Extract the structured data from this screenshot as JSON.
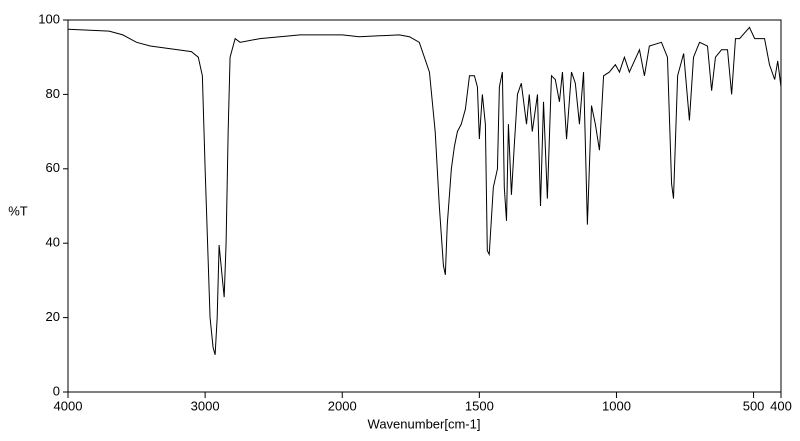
{
  "chart_data": {
    "type": "line",
    "xlabel": "Wavenumber[cm-1]",
    "ylabel": "%T",
    "xlim": [
      4000,
      400
    ],
    "ylim": [
      0,
      100
    ],
    "xticks": [
      4000,
      3000,
      2000,
      1500,
      1000,
      500,
      400
    ],
    "yticks": [
      0,
      20,
      40,
      60,
      80,
      100
    ],
    "xscale": {
      "break": 2000,
      "factor": 2
    },
    "series": [
      {
        "color": "#000000",
        "x": [
          4000,
          3700,
          3600,
          3500,
          3400,
          3300,
          3200,
          3100,
          3050,
          3020,
          3000,
          2964,
          2942,
          2927,
          2912,
          2898,
          2861,
          2847,
          2832,
          2818,
          2781,
          2745,
          2600,
          2307,
          2000,
          1938,
          1792,
          1755,
          1719,
          1682,
          1661,
          1646,
          1631,
          1624,
          1617,
          1602,
          1591,
          1580,
          1566,
          1551,
          1536,
          1518,
          1507,
          1500,
          1489,
          1478,
          1471,
          1464,
          1449,
          1434,
          1427,
          1416,
          1409,
          1401,
          1394,
          1383,
          1372,
          1361,
          1347,
          1328,
          1318,
          1307,
          1288,
          1277,
          1266,
          1252,
          1237,
          1223,
          1208,
          1197,
          1182,
          1164,
          1150,
          1135,
          1120,
          1106,
          1091,
          1077,
          1062,
          1047,
          1026,
          1004,
          989,
          971,
          953,
          916,
          898,
          880,
          836,
          814,
          799,
          792,
          777,
          755,
          734,
          719,
          697,
          668,
          653,
          639,
          617,
          595,
          580,
          566,
          551,
          515,
          496,
          460,
          442,
          423,
          412,
          400
        ],
        "values": [
          97.5,
          97,
          96,
          94,
          93,
          92.5,
          92,
          91.5,
          90,
          85,
          60,
          20,
          12,
          10,
          20,
          39.5,
          25.5,
          40,
          70,
          90,
          95,
          94,
          95,
          96,
          96,
          95.5,
          96,
          95.5,
          94,
          86,
          70,
          50,
          34,
          31.5,
          45,
          60,
          66,
          70,
          72,
          76,
          85,
          85,
          82,
          68,
          80,
          72,
          38,
          37,
          55,
          60,
          82,
          86,
          55,
          46,
          72,
          53,
          67,
          80,
          83,
          72,
          80,
          70,
          80,
          50,
          78,
          52,
          85,
          84,
          78,
          86,
          68,
          86,
          83,
          72,
          86,
          45,
          77,
          72,
          65,
          85,
          86,
          88,
          86,
          90,
          86,
          92,
          85,
          93,
          94,
          90,
          56,
          52,
          85,
          91,
          73,
          90,
          94,
          93,
          81,
          90,
          92,
          92,
          80,
          95,
          95,
          98,
          95,
          95,
          88,
          84,
          89,
          82
        ]
      }
    ]
  }
}
